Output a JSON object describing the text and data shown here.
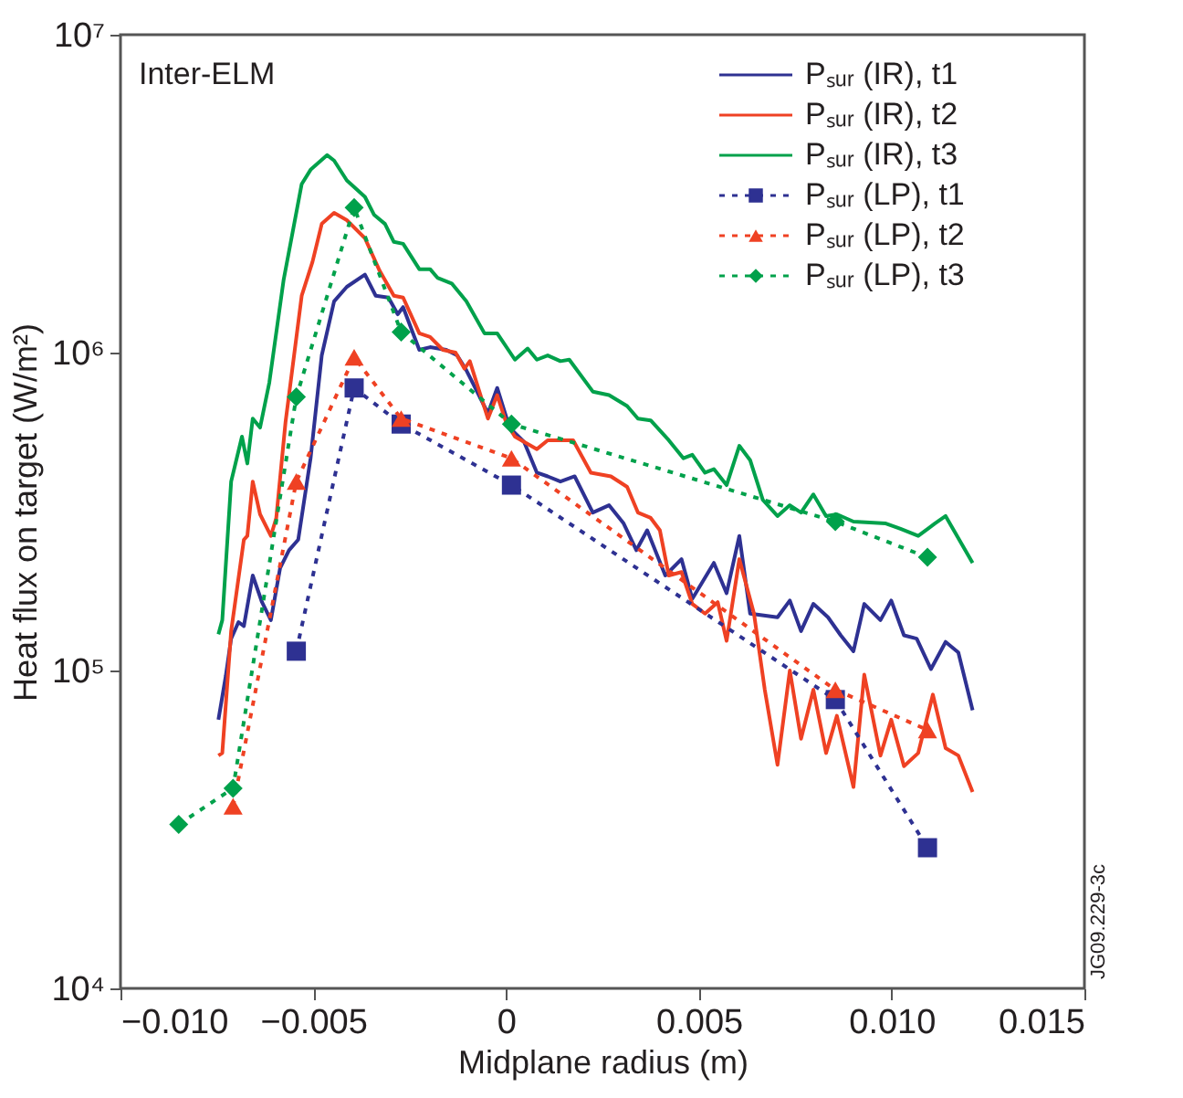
{
  "chart_data": {
    "type": "line",
    "xlabel": "Midplane radius (m)",
    "ylabel": "Heat flux on target (W/m²)",
    "log": "y",
    "legend": "top right",
    "xlim": [
      -0.01,
      0.015
    ],
    "xticks": [
      {
        "value": -0.01,
        "label": "−0.010"
      },
      {
        "value": -0.005,
        "label": "−0.005"
      },
      0,
      {
        "value": 0.005,
        "label": "0.005"
      },
      {
        "value": 0.01,
        "label": "0.010"
      },
      {
        "value": 0.015,
        "label": "0.015"
      }
    ],
    "ylim": [
      10000,
      10000000
    ],
    "yticks": [
      {
        "value": 10000,
        "label": "10⁴"
      },
      {
        "value": 100000,
        "label": "10⁵"
      },
      {
        "value": 1000000,
        "label": "10⁶"
      },
      {
        "value": 10000000,
        "label": "10⁷"
      }
    ],
    "annotations": [
      "Inter-ELM",
      "JG09.229-3c"
    ],
    "series": [
      {
        "name": "Pₛᵤᵣ (IR), t1",
        "color": "#2e3192",
        "marker": "none",
        "line_style": "solid",
        "x": [
          -0.00746,
          -0.00727,
          -0.00713,
          -0.00694,
          -0.0068,
          -0.00657,
          -0.00633,
          -0.0061,
          -0.00586,
          -0.00563,
          -0.00539,
          -0.00507,
          -0.00478,
          -0.00446,
          -0.00413,
          -0.00366,
          -0.00338,
          -0.00305,
          -0.00281,
          -0.00267,
          -0.00225,
          -0.00197,
          -0.00155,
          -0.00127,
          -0.00103,
          -0.0008,
          -0.00047,
          -0.00023,
          9e-05,
          0.00047,
          0.0008,
          0.00108,
          0.00141,
          0.00178,
          0.00225,
          0.00267,
          0.00305,
          0.00338,
          0.00366,
          0.00413,
          0.00455,
          0.00483,
          0.00539,
          0.00572,
          0.00605,
          0.00633,
          0.00704,
          0.00736,
          0.00765,
          0.00797,
          0.00835,
          0.00868,
          0.00901,
          0.00929,
          0.00971,
          0.00999,
          0.01032,
          0.01065,
          0.01102,
          0.0114,
          0.01173,
          0.0121
        ],
        "values": [
          70000,
          96000,
          126000,
          142000,
          138000,
          199000,
          164000,
          144000,
          210000,
          239000,
          258000,
          465000,
          980000,
          1450000,
          1610000,
          1760000,
          1510000,
          1490000,
          1320000,
          1390000,
          1020000,
          1040000,
          1020000,
          980000,
          880000,
          774000,
          644000,
          774000,
          581000,
          523000,
          419000,
          408000,
          393000,
          408000,
          314000,
          331000,
          290000,
          239000,
          276000,
          199000,
          224000,
          168000,
          218000,
          175000,
          265000,
          151000,
          147000,
          166000,
          133000,
          162000,
          147000,
          129000,
          115000,
          162000,
          144000,
          166000,
          129000,
          126000,
          101000,
          123000,
          114000,
          75000
        ]
      },
      {
        "name": "Pₛᵤᵣ (IR), t2",
        "color": "#ef4123",
        "marker": "none",
        "line_style": "solid",
        "x": [
          -0.00746,
          -0.00736,
          -0.00713,
          -0.0068,
          -0.00671,
          -0.00657,
          -0.00638,
          -0.0061,
          -0.00596,
          -0.00572,
          -0.0053,
          -0.00502,
          -0.00478,
          -0.00446,
          -0.00413,
          -0.00366,
          -0.00328,
          -0.00291,
          -0.00267,
          -0.00225,
          -0.00197,
          -0.00164,
          -0.00131,
          -0.00108,
          -0.00094,
          -0.00047,
          -0.00023,
          0,
          0.00023,
          0.0008,
          0.00108,
          0.00174,
          0.0022,
          0.00272,
          0.00314,
          0.00342,
          0.00375,
          0.00399,
          0.00422,
          0.00455,
          0.00483,
          0.00516,
          0.00549,
          0.00572,
          0.00605,
          0.00643,
          0.00671,
          0.00704,
          0.00736,
          0.00765,
          0.00797,
          0.0083,
          0.00858,
          0.00901,
          0.00929,
          0.00971,
          0.00999,
          0.01032,
          0.01069,
          0.01107,
          0.0114,
          0.01173,
          0.0121
        ],
        "values": [
          54000,
          55000,
          133000,
          258000,
          265000,
          393000,
          310000,
          265000,
          302000,
          604000,
          1510000,
          1930000,
          2540000,
          2750000,
          2610000,
          2290000,
          1810000,
          1510000,
          1490000,
          1150000,
          1120000,
          1020000,
          1000000,
          890000,
          940000,
          620000,
          735000,
          604000,
          544000,
          497000,
          530000,
          530000,
          419000,
          408000,
          378000,
          314000,
          302000,
          276000,
          199000,
          204000,
          162000,
          151000,
          164000,
          124000,
          224000,
          151000,
          87000,
          50500,
          100000,
          61000,
          87000,
          55000,
          72000,
          43000,
          97000,
          54000,
          70000,
          50000,
          55000,
          84000,
          57000,
          54000,
          41500
        ]
      },
      {
        "name": "Pₛᵤᵣ (IR), t3",
        "color": "#00a14b",
        "marker": "none",
        "line_style": "solid",
        "x": [
          -0.00746,
          -0.00736,
          -0.00713,
          -0.00685,
          -0.00671,
          -0.00657,
          -0.00638,
          -0.00614,
          -0.00577,
          -0.0053,
          -0.00507,
          -0.00464,
          -0.00446,
          -0.00413,
          -0.00366,
          -0.00342,
          -0.00314,
          -0.00291,
          -0.00267,
          -0.00225,
          -0.00197,
          -0.00178,
          -0.00141,
          -0.00103,
          -0.00056,
          -0.00023,
          0.00023,
          0.00056,
          0.0008,
          0.00108,
          0.00141,
          0.00164,
          0.00225,
          0.00267,
          0.00314,
          0.00342,
          0.00375,
          0.00422,
          0.0046,
          0.00483,
          0.00516,
          0.00539,
          0.00572,
          0.00605,
          0.00633,
          0.00666,
          0.00704,
          0.00736,
          0.00765,
          0.00797,
          0.0083,
          0.00858,
          0.00901,
          0.00985,
          0.01023,
          0.01069,
          0.01112,
          0.0114,
          0.0121
        ],
        "values": [
          130000,
          144000,
          393000,
          544000,
          448000,
          620000,
          581000,
          805000,
          1690000,
          3390000,
          3760000,
          4180000,
          4020000,
          3480000,
          3090000,
          2710000,
          2540000,
          2230000,
          2200000,
          1830000,
          1830000,
          1720000,
          1650000,
          1450000,
          1150000,
          1150000,
          950000,
          1030000,
          950000,
          980000,
          940000,
          950000,
          754000,
          735000,
          679000,
          620000,
          612000,
          530000,
          465000,
          477000,
          419000,
          430000,
          383000,
          509000,
          459000,
          344000,
          306000,
          331000,
          314000,
          358000,
          306000,
          310000,
          294000,
          290000,
          279000,
          265000,
          290000,
          306000,
          218000
        ]
      },
      {
        "name": "Pₛᵤᵣ (LP), t1",
        "color": "#2e3192",
        "marker": "square",
        "line_style": "dotted",
        "x": [
          -0.00544,
          -0.00394,
          -0.00272,
          0.00014,
          0.00854,
          0.01093
        ],
        "values": [
          115000,
          774000,
          596000,
          383000,
          81000,
          27700
        ]
      },
      {
        "name": "Pₛᵤᵣ (LP), t2",
        "color": "#ef4123",
        "marker": "triangle",
        "line_style": "dotted",
        "x": [
          -0.00708,
          -0.00544,
          -0.00394,
          -0.00272,
          0.00014,
          0.00854,
          0.01093
        ],
        "values": [
          37400,
          393000,
          967000,
          620000,
          465000,
          87000,
          65000
        ]
      },
      {
        "name": "Pₛᵤᵣ (LP), t3",
        "color": "#00a14b",
        "marker": "diamond",
        "line_style": "dotted",
        "x": [
          -0.00849,
          -0.00708,
          -0.00544,
          -0.00394,
          -0.00272,
          0.00014,
          0.00854,
          0.01093
        ],
        "values": [
          32800,
          42600,
          725000,
          2860000,
          1160000,
          596000,
          294000,
          227000
        ]
      }
    ]
  }
}
